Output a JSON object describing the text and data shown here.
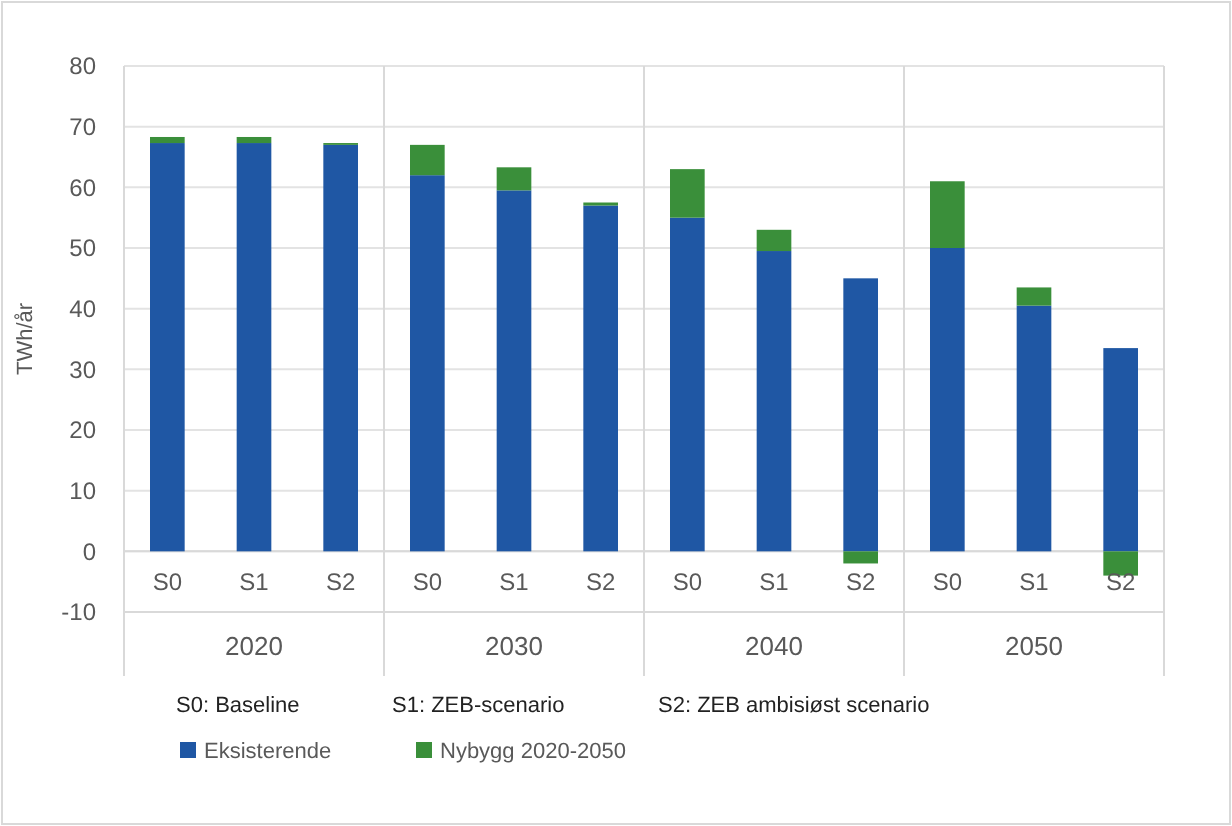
{
  "chart_data": {
    "type": "bar",
    "stacked": true,
    "ylabel": "TWh/år",
    "categories": [
      "S0",
      "S1",
      "S2",
      "S0",
      "S1",
      "S2",
      "S0",
      "S1",
      "S2",
      "S0",
      "S1",
      "S2"
    ],
    "series": [
      {
        "name": "Eksisterende",
        "color": "#1f57a4",
        "values": [
          67.3,
          67.3,
          67,
          62,
          59.5,
          57,
          55,
          49.5,
          45,
          50,
          40.5,
          33.5
        ]
      },
      {
        "name": "Nybygg 2020-2050",
        "color": "#3a8f3a",
        "values": [
          1,
          1,
          0.3,
          5,
          3.8,
          0.5,
          8,
          3.5,
          -2,
          11,
          3,
          -4
        ]
      }
    ],
    "ylim": [
      -10,
      80
    ],
    "yticks": [
      -10,
      0,
      10,
      20,
      30,
      40,
      50,
      60,
      70,
      80
    ],
    "grid": "y",
    "legend": "bottom",
    "annotations": [
      "2020",
      "2030",
      "2040",
      "2050",
      "S0: Baseline",
      "S1: ZEB-scenario",
      "S2: ZEB ambisiøst scenario"
    ]
  }
}
